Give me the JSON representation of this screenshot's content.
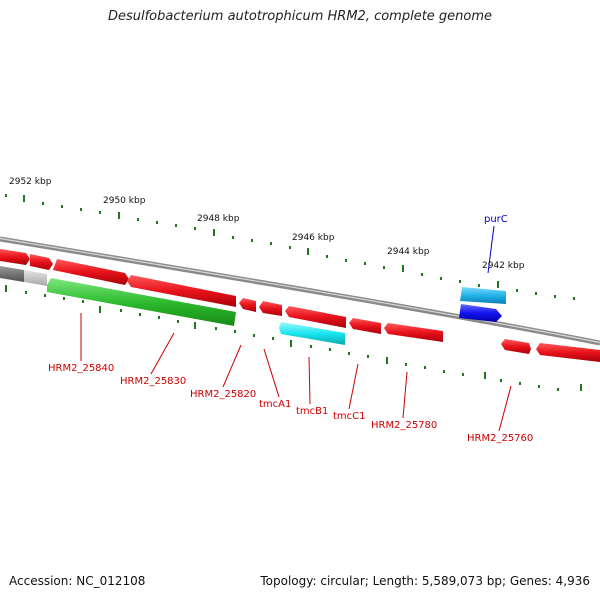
{
  "title": "Desulfobacterium autotrophicum HRM2, complete genome",
  "footer": {
    "accession": "Accession: NC_012108",
    "summary": "Topology: circular; Length: 5,589,073 bp; Genes: 4,936"
  },
  "colors": {
    "gene_red": "#e8121b",
    "gene_green": "#2ebb2e",
    "gene_cyan": "#19e6ef",
    "gene_lightblue": "#21b4ea",
    "gene_blue": "#1313f0",
    "backbone": "#8a8a8a",
    "tick": "#1e7a1e",
    "label_red": "#cc0000",
    "label_blue": "#0000cc"
  },
  "scale": {
    "labels": [
      "2952 kbp",
      "2950 kbp",
      "2948 kbp",
      "2946 kbp",
      "2944 kbp",
      "2942 kbp"
    ]
  },
  "genes": [
    {
      "name": "HRM2_25840",
      "color": "red"
    },
    {
      "name": "HRM2_25830",
      "color": "green"
    },
    {
      "name": "HRM2_25820",
      "color": "red"
    },
    {
      "name": "tmcA1",
      "color": "red"
    },
    {
      "name": "tmcB1",
      "color": "cyan"
    },
    {
      "name": "tmcC1",
      "color": "red"
    },
    {
      "name": "HRM2_25780",
      "color": "red"
    },
    {
      "name": "purC",
      "color": "blue"
    },
    {
      "name": "HRM2_25760",
      "color": "red"
    }
  ]
}
